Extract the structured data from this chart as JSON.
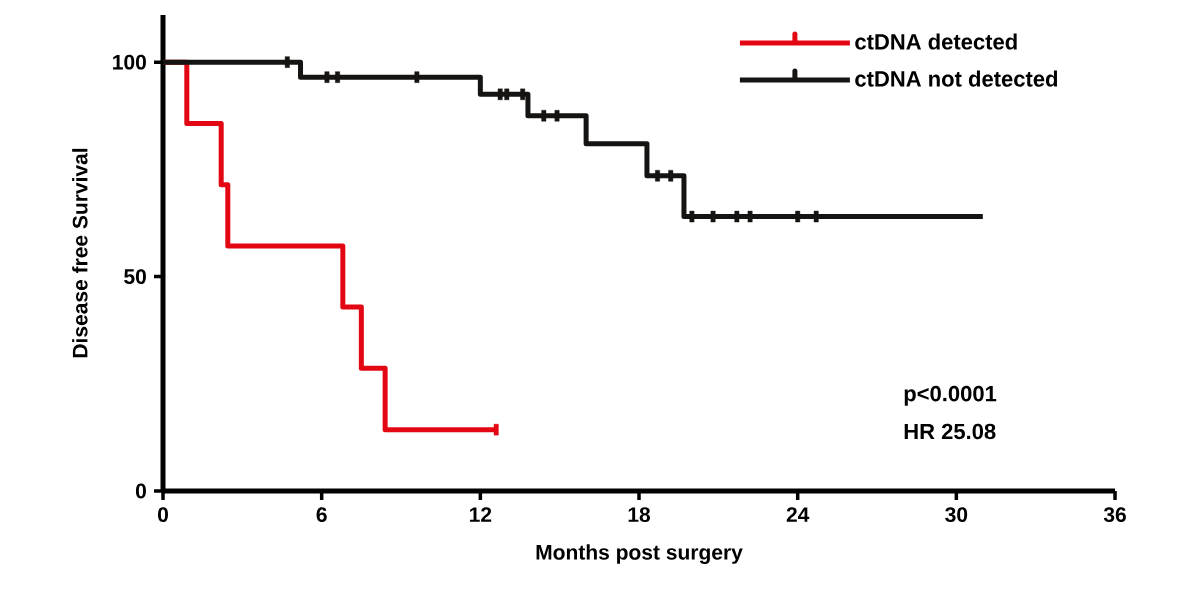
{
  "chart_data": {
    "type": "step",
    "xlabel": "Months post surgery",
    "ylabel": "Disease free Survival",
    "xlim": [
      0,
      36
    ],
    "ylim": [
      0,
      111
    ],
    "xticks": [
      0,
      6,
      12,
      18,
      24,
      30,
      36
    ],
    "yticks": [
      0,
      50,
      100
    ],
    "legend": "top right",
    "grid": false,
    "annotations": [
      "p<0.0001",
      "HR 25.08"
    ],
    "series": [
      {
        "name": "ctDNA detected",
        "color": "#e30613",
        "x": [
          0,
          0.9,
          2.2,
          2.45,
          6.8,
          7.5,
          8.4,
          12.6
        ],
        "values": [
          100,
          85.7,
          71.4,
          57.1,
          42.9,
          28.6,
          14.3,
          14.3
        ]
      },
      {
        "name": "ctDNA not detected",
        "color": "#161412",
        "x": [
          0,
          5.2,
          12.0,
          13.8,
          16.0,
          18.3,
          19.7,
          31.0
        ],
        "values": [
          100,
          96.5,
          92.5,
          87.5,
          81,
          73.5,
          64,
          64
        ]
      },
      {
        "type": "scatter",
        "marker": "square",
        "color": "#e30613",
        "x": [
          12.6
        ],
        "values": [
          14.3
        ]
      },
      {
        "type": "scatter",
        "marker": "square",
        "color": "#161412",
        "x": [
          4.7,
          6.2,
          6.6,
          9.6,
          12.75,
          13.0,
          13.6,
          14.4,
          14.9,
          18.7,
          19.2,
          20.0,
          20.8,
          21.7,
          22.2,
          24.0,
          24.7
        ],
        "values": [
          100,
          96.5,
          96.5,
          96.5,
          92.5,
          92.5,
          92.5,
          87.5,
          87.5,
          73.5,
          73.5,
          64,
          64,
          64,
          64,
          64,
          64
        ]
      }
    ]
  }
}
